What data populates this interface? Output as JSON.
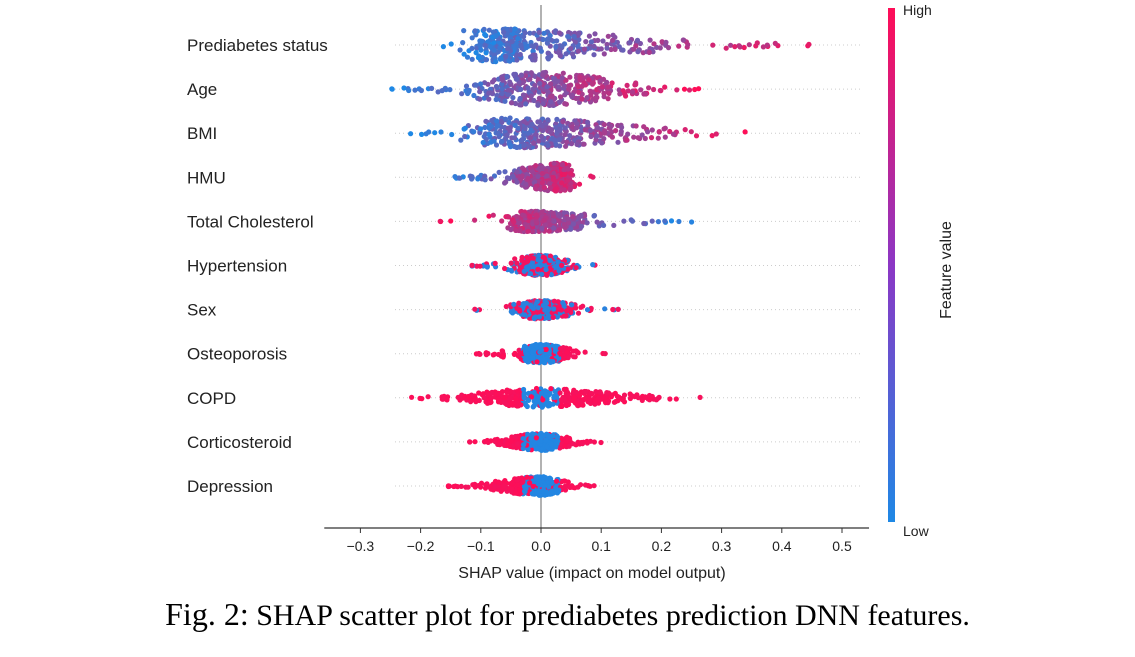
{
  "caption": {
    "label": "Fig. 2:",
    "text": " SHAP scatter plot for prediabetes prediction DNN features."
  },
  "colors": {
    "low": "#1e88e5",
    "high": "#ff0d57"
  },
  "chart_data": {
    "type": "scatter",
    "subtype": "shap-beeswarm",
    "xlabel": "SHAP value (impact on model output)",
    "xlim": [
      -0.36,
      0.52
    ],
    "xticks": [
      -0.3,
      -0.2,
      -0.1,
      0.0,
      0.1,
      0.2,
      0.3,
      0.4,
      0.5
    ],
    "xtick_labels": [
      "−0.3",
      "−0.2",
      "−0.1",
      "0.0",
      "0.1",
      "0.2",
      "0.3",
      "0.4",
      "0.5"
    ],
    "zero_line": true,
    "colorbar": {
      "label": "Feature value",
      "high": "High",
      "low": "Low"
    },
    "features": [
      {
        "name": "Prediabetes status",
        "min": -0.17,
        "max": 0.48,
        "bulk": [
          -0.15,
          0.32
        ],
        "mode": -0.12,
        "low_side": "left",
        "width": 1.0
      },
      {
        "name": "Age",
        "min": -0.25,
        "max": 0.28,
        "bulk": [
          -0.17,
          0.21
        ],
        "mode": 0.0,
        "low_side": "left",
        "width": 1.0
      },
      {
        "name": "BMI",
        "min": -0.22,
        "max": 0.4,
        "bulk": [
          -0.17,
          0.28
        ],
        "mode": -0.05,
        "low_side": "left",
        "width": 0.9
      },
      {
        "name": "HMU",
        "min": -0.15,
        "max": 0.09,
        "bulk": [
          -0.08,
          0.06
        ],
        "mode": 0.04,
        "low_side": "left",
        "width": 0.85
      },
      {
        "name": "Total Cholesterol",
        "min": -0.17,
        "max": 0.27,
        "bulk": [
          -0.07,
          0.12
        ],
        "mode": -0.02,
        "low_side": "right",
        "width": 0.6
      },
      {
        "name": "Hypertension",
        "min": -0.12,
        "max": 0.1,
        "bulk": [
          -0.06,
          0.07
        ],
        "mode": 0.0,
        "low_side": "mixed",
        "width": 0.6
      },
      {
        "name": "Sex",
        "min": -0.12,
        "max": 0.13,
        "bulk": [
          -0.07,
          0.08
        ],
        "mode": 0.0,
        "low_side": "mixed",
        "width": 0.55
      },
      {
        "name": "Osteoporosis",
        "min": -0.11,
        "max": 0.11,
        "bulk": [
          -0.05,
          0.06
        ],
        "mode": 0.0,
        "low_side": "center",
        "width": 0.55
      },
      {
        "name": "COPD",
        "min": -0.23,
        "max": 0.28,
        "bulk": [
          -0.21,
          0.24
        ],
        "mode": 0.0,
        "low_side": "center",
        "width": 0.55
      },
      {
        "name": "Corticosteroid",
        "min": -0.12,
        "max": 0.11,
        "bulk": [
          -0.1,
          0.08
        ],
        "mode": 0.0,
        "low_side": "center",
        "width": 0.5
      },
      {
        "name": "Depression",
        "min": -0.16,
        "max": 0.09,
        "bulk": [
          -0.13,
          0.07
        ],
        "mode": 0.0,
        "low_side": "center",
        "width": 0.55
      }
    ]
  }
}
